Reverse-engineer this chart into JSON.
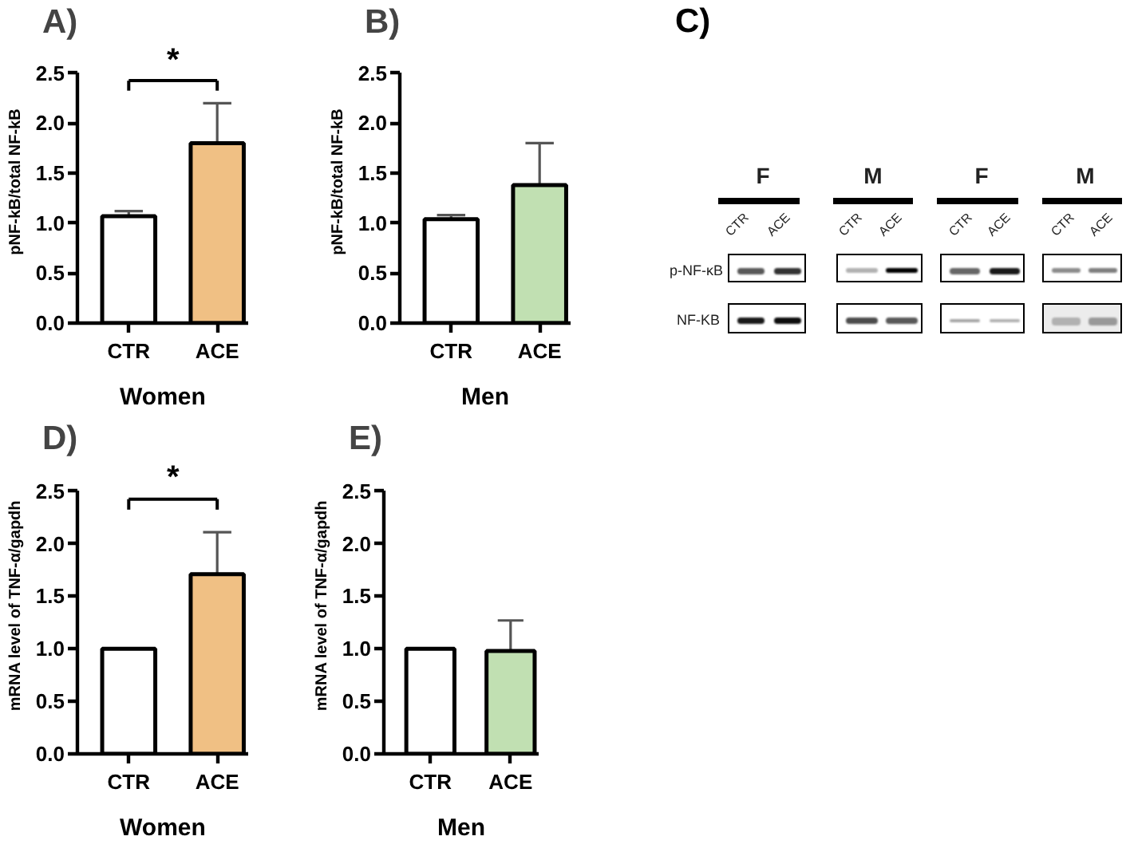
{
  "chart_data": [
    {
      "type": "bar",
      "title": "A)",
      "xlabel": "Women",
      "ylabel": "pNF-kB/total NF-kB",
      "categories": [
        "CTR",
        "ACE"
      ],
      "values": [
        1.07,
        1.8
      ],
      "colors": [
        "#ffffff",
        "#f0c084"
      ],
      "errors": [
        [
          1.07,
          1.12
        ],
        [
          1.8,
          2.2
        ]
      ],
      "ylim": [
        0,
        2.5
      ],
      "yticks": [
        {
          "value": 0,
          "label": "0.0"
        },
        0.5,
        {
          "value": 1,
          "label": "1.0"
        },
        1.5,
        {
          "value": 2,
          "label": "2.0"
        },
        2.5
      ],
      "annotations": [
        "*"
      ]
    },
    {
      "type": "bar",
      "title": "B)",
      "xlabel": "Men",
      "ylabel": "pNF-kB/total NF-kB",
      "categories": [
        "CTR",
        "ACE"
      ],
      "values": [
        1.04,
        1.38
      ],
      "colors": [
        "#ffffff",
        "#c1e0b2"
      ],
      "errors": [
        [
          1.04,
          1.08
        ],
        [
          1.38,
          1.8
        ]
      ],
      "ylim": [
        0,
        2.5
      ],
      "yticks": [
        {
          "value": 0,
          "label": "0.0"
        },
        0.5,
        {
          "value": 1,
          "label": "1.0"
        },
        1.5,
        {
          "value": 2,
          "label": "2.0"
        },
        2.5
      ]
    },
    {
      "type": "other",
      "title": "C)",
      "annotations": [
        "F",
        "M",
        "F",
        "M",
        "CTR",
        "ACE",
        "CTR",
        "ACE",
        "CTR",
        "ACE",
        "CTR",
        "ACE",
        "p-NF-κB",
        "NF-KB"
      ]
    },
    {
      "type": "bar",
      "title": "D)",
      "xlabel": "Women",
      "ylabel": "mRNA level of TNF-α/gapdh",
      "categories": [
        "CTR",
        "ACE"
      ],
      "values": [
        1.0,
        1.71
      ],
      "colors": [
        "#ffffff",
        "#f0c084"
      ],
      "errors": [
        null,
        [
          1.71,
          2.11
        ]
      ],
      "ylim": [
        0,
        2.5
      ],
      "yticks": [
        {
          "value": 0,
          "label": "0.0"
        },
        0.5,
        {
          "value": 1,
          "label": "1.0"
        },
        1.5,
        {
          "value": 2,
          "label": "2.0"
        },
        2.5
      ],
      "annotations": [
        "*"
      ]
    },
    {
      "type": "bar",
      "title": "E)",
      "xlabel": "Men",
      "ylabel": "mRNA level of TNF-α/gapdh",
      "categories": [
        "CTR",
        "ACE"
      ],
      "values": [
        1.0,
        0.98
      ],
      "colors": [
        "#ffffff",
        "#c1e0b2"
      ],
      "errors": [
        null,
        [
          0.98,
          1.27
        ]
      ],
      "ylim": [
        0,
        2.5
      ],
      "yticks": [
        {
          "value": 0,
          "label": "0.0"
        },
        0.5,
        {
          "value": 1,
          "label": "1.0"
        },
        1.5,
        {
          "value": 2,
          "label": "2.0"
        },
        2.5
      ]
    }
  ]
}
